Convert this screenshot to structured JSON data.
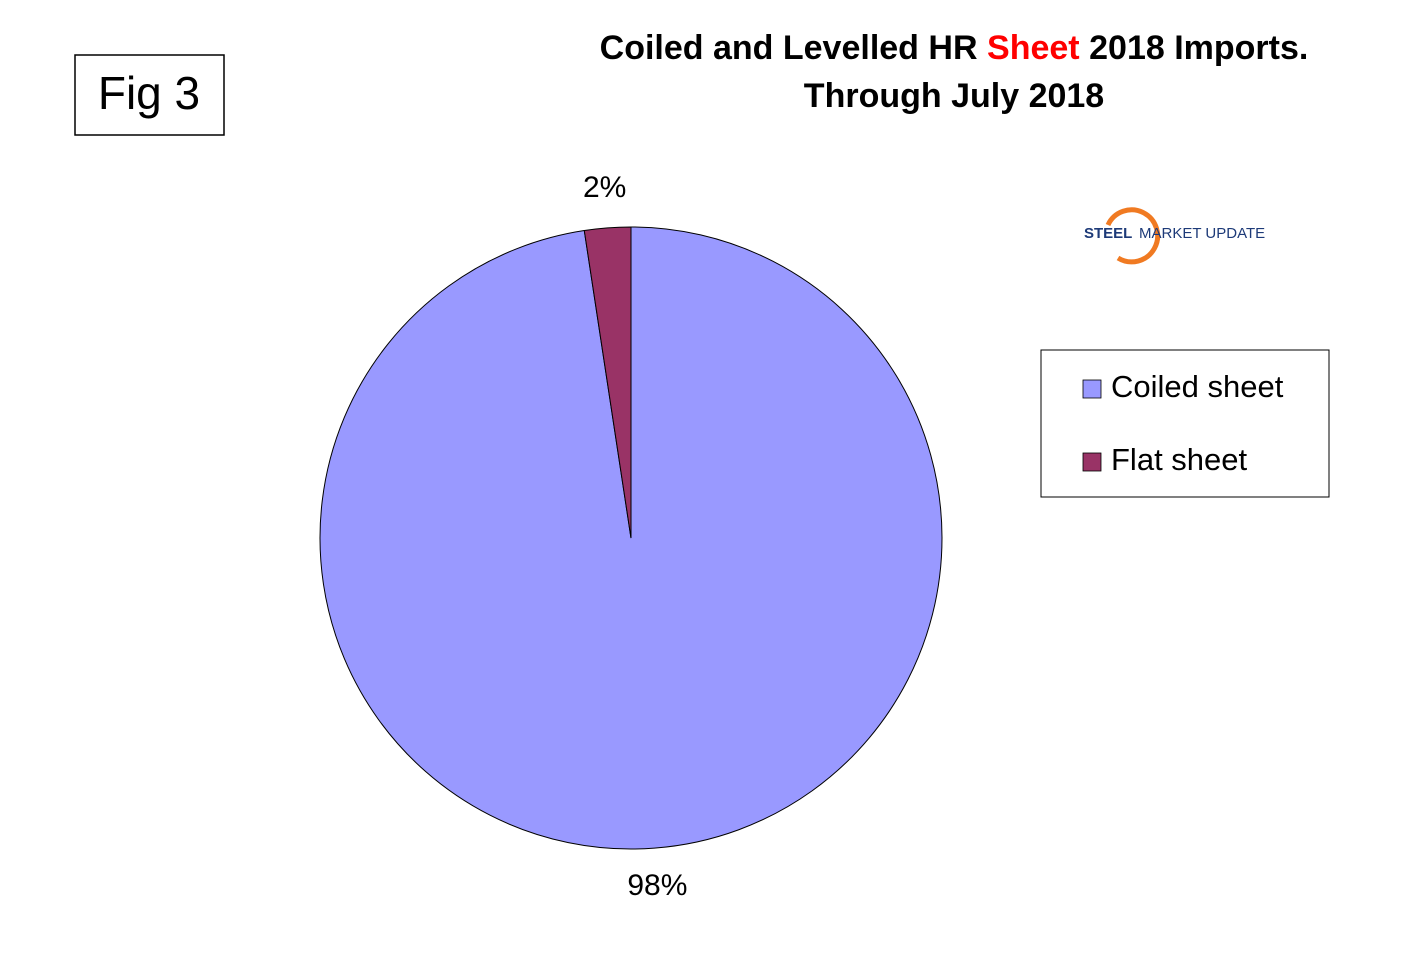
{
  "chart_data": {
    "type": "pie",
    "fig_label": "Fig 3",
    "title": {
      "line1": [
        "Coiled and Levelled HR",
        "Sheet",
        "2018 Imports."
      ],
      "line2": "Through July 2018",
      "highlight_color": "#ff0000"
    },
    "logo": {
      "bold": "STEEL",
      "text": "MARKET UPDATE"
    },
    "categories": [
      "Coiled sheet",
      "Flat sheet"
    ],
    "values": [
      97.6,
      2.4
    ],
    "value_labels": [
      "98%",
      "2%"
    ],
    "colors": [
      "#9999ff",
      "#993366"
    ],
    "legend": "right"
  }
}
